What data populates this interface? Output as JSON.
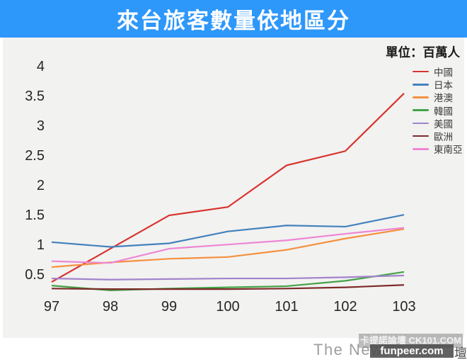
{
  "header": {
    "title": "來台旅客數量依地區分"
  },
  "unit_label": "單位：百萬人",
  "chart_data": {
    "type": "line",
    "title": "來台旅客數量依地區分",
    "x": [
      97,
      98,
      99,
      100,
      101,
      102,
      103
    ],
    "xlabel": "",
    "ylabel": "",
    "ylim": [
      0,
      4
    ],
    "y_ticks": [
      0.5,
      1,
      1.5,
      2,
      2.5,
      3,
      3.5,
      4
    ],
    "grid": false,
    "legend_position": "right",
    "series": [
      {
        "name": "中國",
        "color": "#d8342f",
        "values": [
          0.38,
          0.94,
          1.5,
          1.64,
          2.34,
          2.58,
          3.55
        ]
      },
      {
        "name": "日本",
        "color": "#4481bd",
        "values": [
          1.05,
          0.97,
          1.03,
          1.23,
          1.33,
          1.31,
          1.51
        ]
      },
      {
        "name": "港澳",
        "color": "#f5913e",
        "values": [
          0.63,
          0.71,
          0.77,
          0.8,
          0.92,
          1.11,
          1.27
        ]
      },
      {
        "name": "韓國",
        "color": "#44a247",
        "values": [
          0.32,
          0.24,
          0.27,
          0.29,
          0.31,
          0.4,
          0.55
        ]
      },
      {
        "name": "美國",
        "color": "#a383cc",
        "values": [
          0.44,
          0.42,
          0.43,
          0.44,
          0.44,
          0.46,
          0.49
        ]
      },
      {
        "name": "歐洲",
        "color": "#7e2a2a",
        "values": [
          0.27,
          0.26,
          0.26,
          0.26,
          0.27,
          0.29,
          0.33
        ]
      },
      {
        "name": "東南亞",
        "color": "#ee86d4",
        "values": [
          0.73,
          0.7,
          0.94,
          1.01,
          1.08,
          1.19,
          1.29
        ]
      }
    ]
  },
  "watermarks": {
    "brand": "The News",
    "overlay_text": "卡提諾論壇 CK101.COM",
    "badge": "funpeer.com",
    "edge_char": "壇"
  }
}
